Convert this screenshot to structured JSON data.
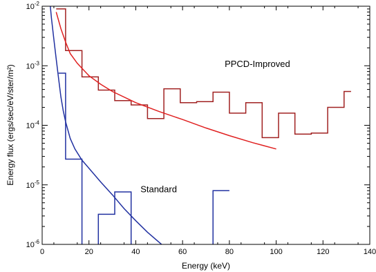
{
  "chart_data": {
    "type": "line",
    "title": "",
    "xlabel": "Energy (keV)",
    "ylabel": "Energy flux (ergs/sec/eV/ster/m²)",
    "xlim": [
      0,
      140
    ],
    "ylim": [
      1e-06,
      0.01
    ],
    "yscale": "log",
    "x_ticks": [
      0,
      20,
      40,
      60,
      80,
      100,
      120,
      140
    ],
    "y_ticks": [
      1e-06,
      1e-05,
      0.0001,
      0.001,
      0.01
    ],
    "y_tick_labels": [
      {
        "base": "10",
        "exp": "-6"
      },
      {
        "base": "10",
        "exp": "-5"
      },
      {
        "base": "10",
        "exp": "-4"
      },
      {
        "base": "10",
        "exp": "-3"
      },
      {
        "base": "10",
        "exp": "-2"
      }
    ],
    "grid": false,
    "annotations": [
      {
        "text": "PPCD-Improved",
        "x": 78,
        "y": 0.00095
      },
      {
        "text": "Standard",
        "x": 42,
        "y": 7.5e-06
      }
    ],
    "series": [
      {
        "kind": "step",
        "color": "#a02020",
        "edges": [
          6,
          10,
          17,
          24,
          31,
          38,
          45,
          52,
          59,
          66,
          73,
          80,
          87,
          94,
          101,
          108,
          115,
          122,
          129,
          132
        ],
        "values": [
          0.009,
          0.0018,
          0.00065,
          0.00039,
          0.00026,
          0.00022,
          0.00013,
          0.00041,
          0.00024,
          0.00025,
          0.00036,
          0.00016,
          0.00024,
          6.2e-05,
          0.00016,
          7.1e-05,
          7.4e-05,
          0.0002,
          0.00037
        ]
      },
      {
        "kind": "curve",
        "color": "#e02020",
        "x": [
          6,
          8,
          10,
          12,
          15,
          20,
          25,
          30,
          40,
          50,
          60,
          70,
          80,
          90,
          100
        ],
        "y": [
          0.008,
          0.0042,
          0.0025,
          0.0016,
          0.0011,
          0.00068,
          0.00049,
          0.00037,
          0.00024,
          0.00017,
          0.000125,
          9e-05,
          6.7e-05,
          5.1e-05,
          4e-05
        ]
      },
      {
        "kind": "step",
        "color": "#2030a0",
        "edges": [
          7,
          10,
          17,
          24,
          31,
          38,
          45,
          52,
          59,
          66,
          73,
          80
        ],
        "values": [
          0.00075,
          2.7e-05,
          9e-07,
          3.2e-06,
          7.6e-06,
          9e-07,
          9e-07,
          9e-07,
          9e-07,
          9e-07,
          8e-06
        ]
      },
      {
        "kind": "curve",
        "color": "#2030a0",
        "x": [
          3.5,
          4,
          5,
          6,
          7,
          8,
          9,
          10,
          12,
          14,
          17,
          20,
          25,
          30,
          35,
          40,
          45,
          51
        ],
        "y": [
          0.01,
          0.0062,
          0.0028,
          0.0013,
          0.00062,
          0.0003,
          0.000175,
          0.000115,
          6e-05,
          4e-05,
          2.6e-05,
          1.9e-05,
          1.12e-05,
          6.8e-06,
          4e-06,
          2.5e-06,
          1.6e-06,
          1e-06
        ]
      }
    ]
  }
}
